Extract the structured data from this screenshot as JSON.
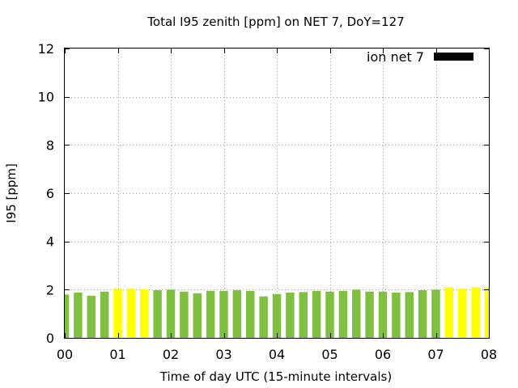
{
  "chart_data": {
    "type": "bar",
    "title": "Total I95 zenith [ppm] on NET 7, DoY=127",
    "xlabel": "Time of day UTC (15-minute intervals)",
    "ylabel": "I95 [ppm]",
    "xlim": [
      0,
      8
    ],
    "ylim": [
      0,
      12
    ],
    "x_ticks": [
      "00",
      "01",
      "02",
      "03",
      "04",
      "05",
      "06",
      "07",
      "08"
    ],
    "y_ticks": [
      0,
      2,
      4,
      6,
      8,
      10,
      12
    ],
    "grid": true,
    "legend": {
      "label": "ion net 7",
      "color": "#000000",
      "position": "top-right"
    },
    "bar_width_hours": 0.16,
    "colors": {
      "normal": "#80c040",
      "elevated": "#ffff00"
    },
    "series": [
      {
        "x": [
          0.0,
          0.25,
          0.5,
          0.75,
          1.0,
          1.25,
          1.5,
          1.75,
          2.0,
          2.25,
          2.5,
          2.75,
          3.0,
          3.25,
          3.5,
          3.75,
          4.0,
          4.25,
          4.5,
          4.75,
          5.0,
          5.25,
          5.5,
          5.75,
          6.0,
          6.25,
          6.5,
          6.75,
          7.0,
          7.25,
          7.5,
          7.75,
          8.0
        ],
        "values": [
          1.8,
          1.88,
          1.75,
          1.92,
          2.05,
          2.05,
          2.02,
          1.98,
          2.0,
          1.92,
          1.85,
          1.95,
          1.95,
          1.98,
          1.95,
          1.72,
          1.82,
          1.88,
          1.9,
          1.95,
          1.92,
          1.95,
          2.0,
          1.92,
          1.92,
          1.88,
          1.9,
          1.98,
          2.0,
          2.1,
          2.05,
          2.1,
          2.1
        ],
        "levels": [
          "normal",
          "normal",
          "normal",
          "normal",
          "elevated",
          "elevated",
          "elevated",
          "normal",
          "normal",
          "normal",
          "normal",
          "normal",
          "normal",
          "normal",
          "normal",
          "normal",
          "normal",
          "normal",
          "normal",
          "normal",
          "normal",
          "normal",
          "normal",
          "normal",
          "normal",
          "normal",
          "normal",
          "normal",
          "normal",
          "elevated",
          "elevated",
          "elevated",
          "elevated"
        ]
      }
    ]
  }
}
